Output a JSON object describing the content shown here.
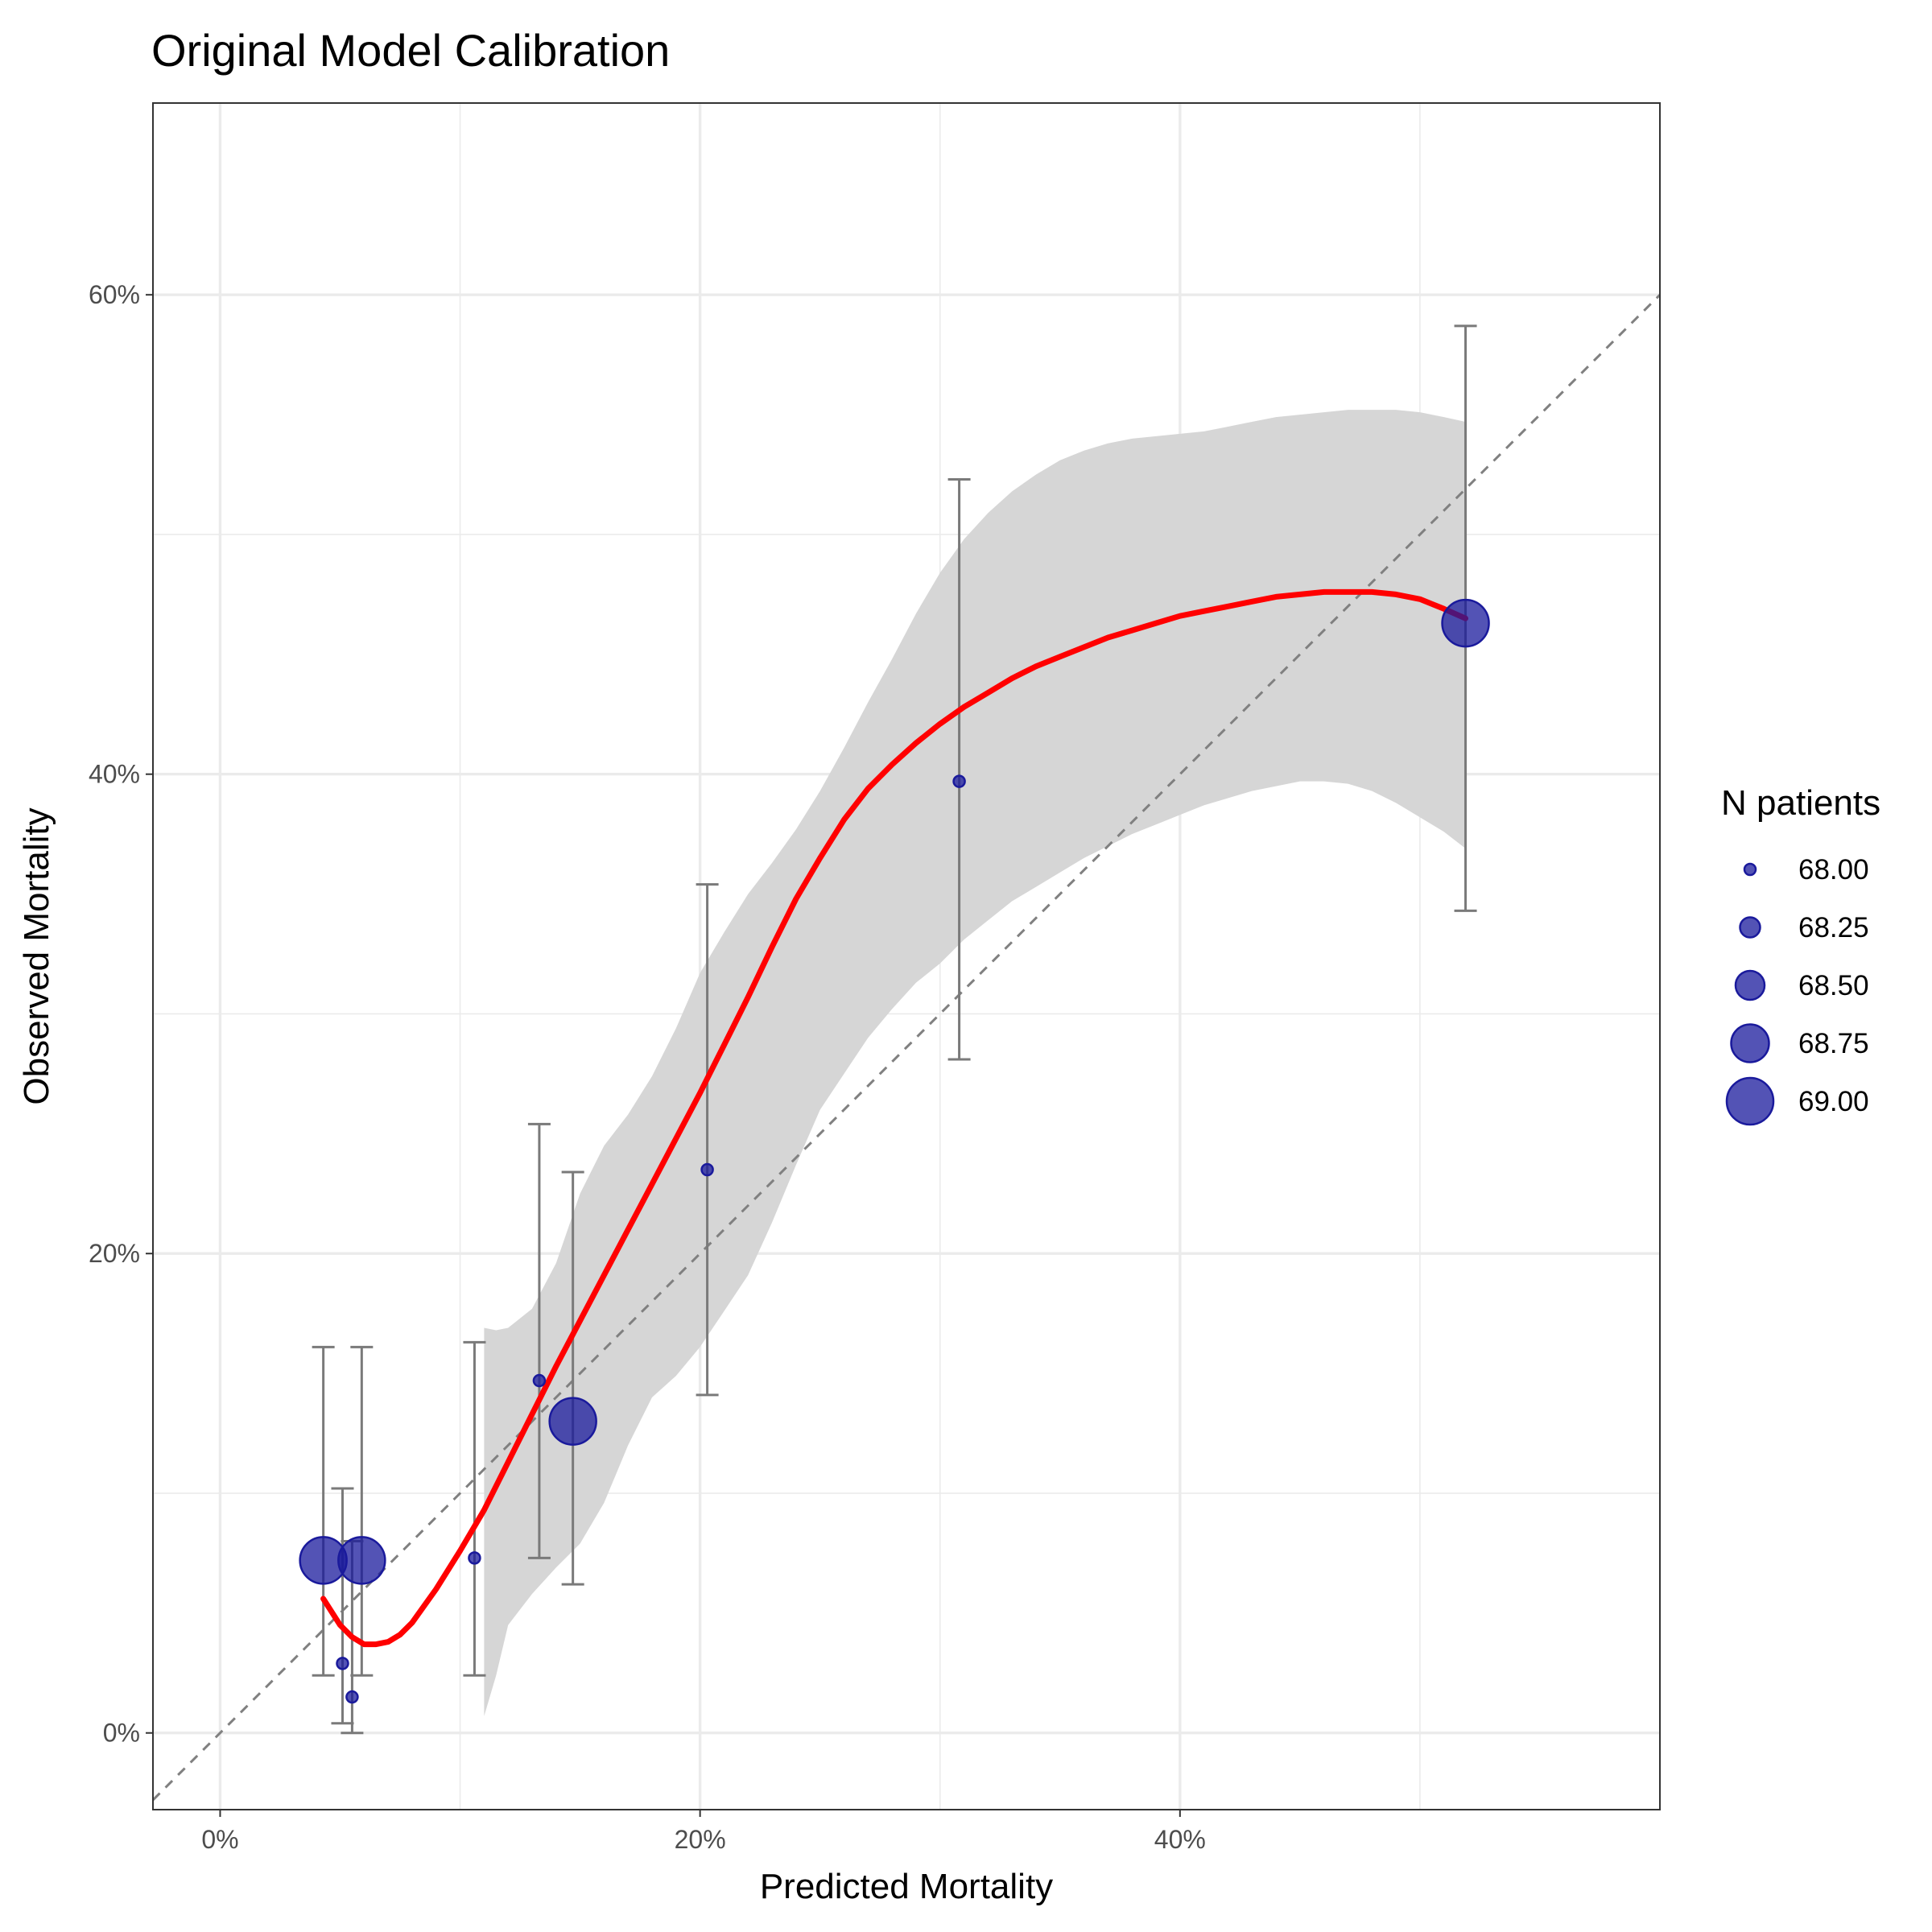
{
  "chart_data": {
    "type": "scatter",
    "title": "Original Model Calibration",
    "xlabel": "Predicted Mortality",
    "ylabel": "Observed Mortality",
    "xlim": [
      -0.028,
      0.6
    ],
    "ylim": [
      -0.032,
      0.68
    ],
    "x_ticks": [
      {
        "value": 0.0,
        "label": "0%"
      },
      {
        "value": 0.2,
        "label": "20%"
      },
      {
        "value": 0.4,
        "label": "40%"
      }
    ],
    "y_ticks": [
      {
        "value": 0.0,
        "label": "0%"
      },
      {
        "value": 0.2,
        "label": "20%"
      },
      {
        "value": 0.4,
        "label": "40%"
      },
      {
        "value": 0.6,
        "label": "60%"
      }
    ],
    "x_minor_grid": [
      0.1,
      0.3,
      0.5
    ],
    "y_minor_grid": [
      0.1,
      0.3,
      0.5
    ],
    "grid": true,
    "reference_line": {
      "type": "identity",
      "style": "dashed",
      "color": "#808080"
    },
    "points": [
      {
        "x": 0.043,
        "y": 0.072,
        "n": 69.0,
        "lo": 0.024,
        "hi": 0.161
      },
      {
        "x": 0.059,
        "y": 0.072,
        "n": 69.0,
        "lo": 0.024,
        "hi": 0.161
      },
      {
        "x": 0.051,
        "y": 0.029,
        "n": 68.0,
        "lo": 0.004,
        "hi": 0.102
      },
      {
        "x": 0.055,
        "y": 0.015,
        "n": 68.0,
        "lo": 0.0,
        "hi": 0.08
      },
      {
        "x": 0.106,
        "y": 0.073,
        "n": 68.0,
        "lo": 0.024,
        "hi": 0.163
      },
      {
        "x": 0.133,
        "y": 0.147,
        "n": 68.0,
        "lo": 0.073,
        "hi": 0.254
      },
      {
        "x": 0.147,
        "y": 0.13,
        "n": 69.0,
        "lo": 0.062,
        "hi": 0.234
      },
      {
        "x": 0.203,
        "y": 0.235,
        "n": 68.0,
        "lo": 0.141,
        "hi": 0.354
      },
      {
        "x": 0.308,
        "y": 0.397,
        "n": 68.0,
        "lo": 0.281,
        "hi": 0.523
      },
      {
        "x": 0.519,
        "y": 0.463,
        "n": 69.0,
        "lo": 0.343,
        "hi": 0.587
      }
    ],
    "point_color": "#1a1a9c",
    "smooth": {
      "color": "#ff0000",
      "x": [
        0.043,
        0.05,
        0.055,
        0.06,
        0.065,
        0.07,
        0.075,
        0.08,
        0.09,
        0.1,
        0.11,
        0.12,
        0.13,
        0.14,
        0.15,
        0.16,
        0.17,
        0.18,
        0.19,
        0.2,
        0.21,
        0.22,
        0.23,
        0.24,
        0.25,
        0.26,
        0.27,
        0.28,
        0.29,
        0.3,
        0.31,
        0.32,
        0.33,
        0.34,
        0.35,
        0.36,
        0.37,
        0.38,
        0.39,
        0.4,
        0.41,
        0.42,
        0.43,
        0.44,
        0.45,
        0.46,
        0.47,
        0.48,
        0.49,
        0.5,
        0.51,
        0.519
      ],
      "y": [
        0.056,
        0.045,
        0.04,
        0.037,
        0.037,
        0.038,
        0.041,
        0.046,
        0.06,
        0.076,
        0.093,
        0.113,
        0.133,
        0.153,
        0.172,
        0.191,
        0.21,
        0.229,
        0.248,
        0.267,
        0.287,
        0.307,
        0.328,
        0.348,
        0.365,
        0.381,
        0.394,
        0.404,
        0.413,
        0.421,
        0.428,
        0.434,
        0.44,
        0.445,
        0.449,
        0.453,
        0.457,
        0.46,
        0.463,
        0.466,
        0.468,
        0.47,
        0.472,
        0.474,
        0.475,
        0.476,
        0.476,
        0.476,
        0.475,
        0.473,
        0.469,
        0.465
      ]
    },
    "ribbon": {
      "color": "#d6d6d6",
      "x": [
        0.11,
        0.115,
        0.12,
        0.13,
        0.14,
        0.15,
        0.16,
        0.17,
        0.18,
        0.19,
        0.2,
        0.21,
        0.22,
        0.23,
        0.24,
        0.25,
        0.26,
        0.27,
        0.28,
        0.29,
        0.3,
        0.31,
        0.32,
        0.33,
        0.34,
        0.35,
        0.36,
        0.37,
        0.38,
        0.39,
        0.4,
        0.41,
        0.42,
        0.43,
        0.44,
        0.45,
        0.46,
        0.47,
        0.48,
        0.49,
        0.5,
        0.51,
        0.519
      ],
      "lo": [
        0.007,
        0.024,
        0.045,
        0.058,
        0.069,
        0.079,
        0.096,
        0.12,
        0.14,
        0.149,
        0.161,
        0.176,
        0.191,
        0.213,
        0.237,
        0.26,
        0.275,
        0.29,
        0.302,
        0.313,
        0.321,
        0.331,
        0.339,
        0.347,
        0.353,
        0.359,
        0.365,
        0.37,
        0.375,
        0.379,
        0.383,
        0.387,
        0.39,
        0.393,
        0.395,
        0.397,
        0.397,
        0.396,
        0.393,
        0.388,
        0.382,
        0.376,
        0.369
      ],
      "hi": [
        0.169,
        0.168,
        0.169,
        0.177,
        0.196,
        0.225,
        0.245,
        0.258,
        0.274,
        0.294,
        0.317,
        0.334,
        0.35,
        0.363,
        0.377,
        0.393,
        0.411,
        0.43,
        0.448,
        0.467,
        0.484,
        0.498,
        0.509,
        0.518,
        0.525,
        0.531,
        0.535,
        0.538,
        0.54,
        0.541,
        0.542,
        0.543,
        0.545,
        0.547,
        0.549,
        0.55,
        0.551,
        0.552,
        0.552,
        0.552,
        0.551,
        0.549,
        0.547
      ]
    },
    "legend": {
      "title": "N patients",
      "placement": "right",
      "entries": [
        {
          "label": "68.00",
          "n": 68.0
        },
        {
          "label": "68.25",
          "n": 68.25
        },
        {
          "label": "68.50",
          "n": 68.5
        },
        {
          "label": "68.75",
          "n": 68.75
        },
        {
          "label": "69.00",
          "n": 69.0
        }
      ]
    }
  }
}
